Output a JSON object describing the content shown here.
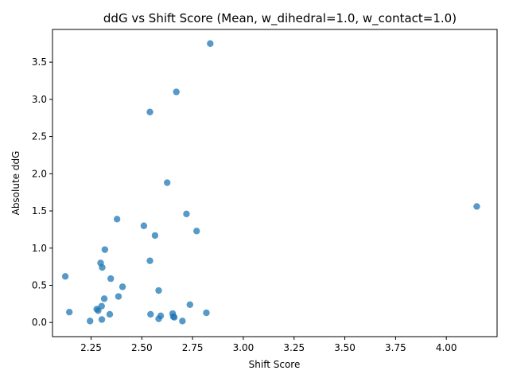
{
  "chart_data": {
    "type": "scatter",
    "title": "ddG vs Shift Score (Mean, w_dihedral=1.0, w_contact=1.0)",
    "xlabel": "Shift Score",
    "ylabel": "Absolute ddG",
    "xlim": [
      2.06,
      4.25
    ],
    "ylim": [
      -0.19,
      3.94
    ],
    "xticks": [
      "2.25",
      "2.50",
      "2.75",
      "3.00",
      "3.25",
      "3.50",
      "3.75",
      "4.00"
    ],
    "yticks": [
      "0.0",
      "0.5",
      "1.0",
      "1.5",
      "2.0",
      "2.5",
      "3.0",
      "3.5"
    ],
    "xtick_values": [
      2.25,
      2.5,
      2.75,
      3.0,
      3.25,
      3.5,
      3.75,
      4.0
    ],
    "ytick_values": [
      0.0,
      0.5,
      1.0,
      1.5,
      2.0,
      2.5,
      3.0,
      3.5
    ],
    "grid": false,
    "color": "#1f77b4",
    "points": [
      {
        "x": 2.837,
        "y": 3.75
      },
      {
        "x": 2.67,
        "y": 3.1
      },
      {
        "x": 2.54,
        "y": 2.83
      },
      {
        "x": 2.625,
        "y": 1.88
      },
      {
        "x": 4.15,
        "y": 1.56
      },
      {
        "x": 2.72,
        "y": 1.46
      },
      {
        "x": 2.378,
        "y": 1.39
      },
      {
        "x": 2.51,
        "y": 1.3
      },
      {
        "x": 2.77,
        "y": 1.23
      },
      {
        "x": 2.565,
        "y": 1.17
      },
      {
        "x": 2.318,
        "y": 0.98
      },
      {
        "x": 2.54,
        "y": 0.83
      },
      {
        "x": 2.297,
        "y": 0.8
      },
      {
        "x": 2.305,
        "y": 0.74
      },
      {
        "x": 2.123,
        "y": 0.62
      },
      {
        "x": 2.347,
        "y": 0.59
      },
      {
        "x": 2.405,
        "y": 0.48
      },
      {
        "x": 2.583,
        "y": 0.43
      },
      {
        "x": 2.385,
        "y": 0.35
      },
      {
        "x": 2.315,
        "y": 0.32
      },
      {
        "x": 2.737,
        "y": 0.24
      },
      {
        "x": 2.302,
        "y": 0.22
      },
      {
        "x": 2.278,
        "y": 0.18
      },
      {
        "x": 2.285,
        "y": 0.16
      },
      {
        "x": 2.143,
        "y": 0.14
      },
      {
        "x": 2.818,
        "y": 0.13
      },
      {
        "x": 2.652,
        "y": 0.12
      },
      {
        "x": 2.342,
        "y": 0.11
      },
      {
        "x": 2.543,
        "y": 0.11
      },
      {
        "x": 2.593,
        "y": 0.09
      },
      {
        "x": 2.655,
        "y": 0.08
      },
      {
        "x": 2.66,
        "y": 0.07
      },
      {
        "x": 2.583,
        "y": 0.05
      },
      {
        "x": 2.303,
        "y": 0.04
      },
      {
        "x": 2.245,
        "y": 0.02
      },
      {
        "x": 2.7,
        "y": 0.02
      }
    ]
  }
}
